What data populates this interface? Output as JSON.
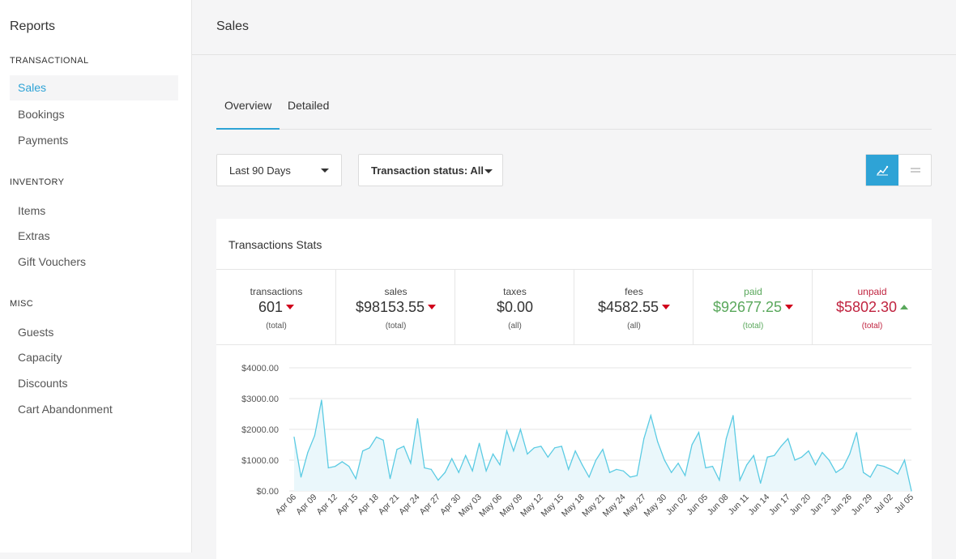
{
  "sidebar": {
    "title": "Reports",
    "sections": [
      {
        "label": "TRANSACTIONAL",
        "items": [
          "Sales",
          "Bookings",
          "Payments"
        ]
      },
      {
        "label": "INVENTORY",
        "items": [
          "Items",
          "Extras",
          "Gift Vouchers"
        ]
      },
      {
        "label": "MISC",
        "items": [
          "Guests",
          "Capacity",
          "Discounts",
          "Cart Abandonment"
        ]
      }
    ],
    "active_item": "Sales"
  },
  "header": {
    "title": "Sales"
  },
  "tabs": [
    {
      "label": "Overview",
      "active": true
    },
    {
      "label": "Detailed",
      "active": false
    }
  ],
  "filters": {
    "date_range": "Last 90 Days",
    "status": "Transaction status: All"
  },
  "view_toggle": {
    "active": "chart-icon",
    "inactive": "list-icon"
  },
  "card": {
    "title": "Transactions Stats"
  },
  "stats": [
    {
      "label": "transactions",
      "value": "601",
      "sub": "(total)",
      "trend": "down",
      "color": "#333333"
    },
    {
      "label": "sales",
      "value": "$98153.55",
      "sub": "(total)",
      "trend": "down",
      "color": "#333333"
    },
    {
      "label": "taxes",
      "value": "$0.00",
      "sub": "(all)",
      "trend": "none",
      "color": "#333333"
    },
    {
      "label": "fees",
      "value": "$4582.55",
      "sub": "(all)",
      "trend": "down",
      "color": "#333333"
    },
    {
      "label": "paid",
      "value": "$92677.25",
      "sub": "(total)",
      "trend": "down",
      "color": "#5aa85c"
    },
    {
      "label": "unpaid",
      "value": "$5802.30",
      "sub": "(total)",
      "trend": "up",
      "color": "#c0233f"
    }
  ],
  "colors": {
    "accent": "#2ea3d6",
    "line": "#5bcbe3",
    "fill": "#eaf7fb",
    "down": "#d0021b",
    "up": "#5aa85c"
  },
  "chart_data": {
    "type": "area",
    "y_ticks": [
      "$4000.00",
      "$3000.00",
      "$2000.00",
      "$1000.00",
      "$0.00"
    ],
    "ylim": [
      0,
      4000
    ],
    "x_tick_labels": [
      "Apr 06",
      "Apr 09",
      "Apr 12",
      "Apr 15",
      "Apr 18",
      "Apr 21",
      "Apr 24",
      "Apr 27",
      "Apr 30",
      "May 03",
      "May 06",
      "May 09",
      "May 12",
      "May 15",
      "May 18",
      "May 21",
      "May 24",
      "May 27",
      "May 30",
      "Jun 02",
      "Jun 05",
      "Jun 08",
      "Jun 11",
      "Jun 14",
      "Jun 17",
      "Jun 20",
      "Jun 23",
      "Jun 26",
      "Jun 29",
      "Jul 02",
      "Jul 05"
    ],
    "start_label": "Apr 06",
    "values": [
      1750,
      450,
      1250,
      1800,
      2950,
      750,
      800,
      950,
      800,
      400,
      1300,
      1400,
      1750,
      1650,
      400,
      1350,
      1450,
      900,
      2350,
      750,
      700,
      350,
      600,
      1050,
      600,
      1150,
      650,
      1550,
      650,
      1200,
      850,
      1950,
      1300,
      2000,
      1200,
      1400,
      1450,
      1100,
      1400,
      1450,
      700,
      1300,
      850,
      450,
      1000,
      1350,
      600,
      700,
      650,
      450,
      500,
      1700,
      2450,
      1600,
      1000,
      600,
      900,
      500,
      1500,
      1900,
      750,
      800,
      350,
      1700,
      2450,
      350,
      850,
      1150,
      250,
      1100,
      1150,
      1450,
      1700,
      1000,
      1100,
      1300,
      850,
      1250,
      1000,
      600,
      750,
      1200,
      1900,
      600,
      450,
      850,
      800,
      700,
      550,
      1000,
      0
    ],
    "grid": true,
    "legend": "none"
  }
}
